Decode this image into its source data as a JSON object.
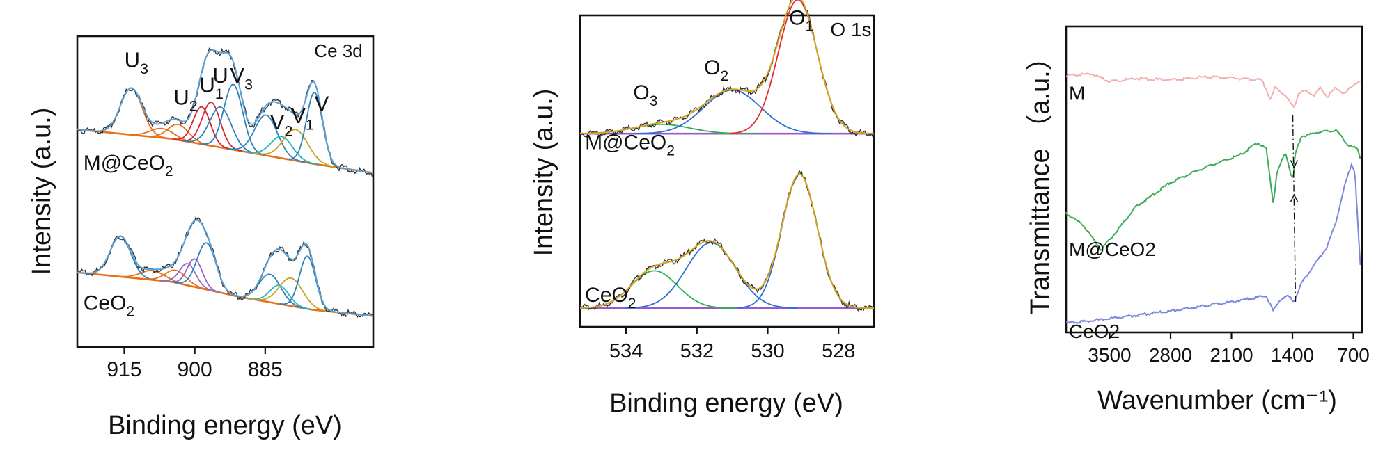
{
  "chart_data": [
    {
      "id": "ce3d",
      "type": "line",
      "title": "Ce 3d",
      "xlabel": "Binding energy (eV)",
      "ylabel": "Intensity (a.u.)",
      "xlim": [
        925,
        862
      ],
      "reversed_x": true,
      "xticks": [
        915,
        900,
        885
      ],
      "ylim": [
        0,
        100
      ],
      "peak_labels": [
        {
          "base": "U",
          "sub": "3",
          "x": 913.5,
          "y": 90
        },
        {
          "base": "U",
          "sub": "2",
          "x": 903,
          "y": 78
        },
        {
          "base": "U",
          "sub": "1",
          "x": 897.5,
          "y": 82
        },
        {
          "base": "U",
          "sub": "",
          "x": 894.7,
          "y": 85
        },
        {
          "base": "V",
          "sub": "3",
          "x": 891,
          "y": 85
        },
        {
          "base": "V",
          "sub": "2",
          "x": 882.5,
          "y": 70
        },
        {
          "base": "V",
          "sub": "1",
          "x": 878,
          "y": 72
        },
        {
          "base": "V",
          "sub": "",
          "x": 873,
          "y": 76
        }
      ],
      "sample_labels": [
        {
          "base": "M@CeO",
          "sub": "2",
          "x": 924,
          "y": 57
        },
        {
          "base": "CeO",
          "sub": "2",
          "x": 924,
          "y": 12
        }
      ],
      "samples": [
        {
          "name": "M@CeO2",
          "offset": 56,
          "baseline": [
            [
              925,
              14
            ],
            [
              905,
              11
            ],
            [
              890,
              7
            ],
            [
              875,
              3
            ],
            [
              862,
              0
            ]
          ],
          "components": [
            {
              "color": "#e8701a",
              "center": 913.5,
              "height": 15,
              "width": 2.3
            },
            {
              "color": "#e8701a",
              "center": 907,
              "height": 3,
              "width": 2.5
            },
            {
              "color": "#e8701a",
              "center": 903.5,
              "height": 5,
              "width": 2.2
            },
            {
              "color": "#d62728",
              "center": 898.5,
              "height": 12,
              "width": 1.8
            },
            {
              "color": "#d62728",
              "center": 896.5,
              "height": 14,
              "width": 1.9
            },
            {
              "color": "#2b83ba",
              "center": 894.5,
              "height": 13,
              "width": 2.3
            },
            {
              "color": "#2b83ba",
              "center": 891.8,
              "height": 21,
              "width": 2.0
            },
            {
              "color": "#2b83ba",
              "center": 884.8,
              "height": 13,
              "width": 2.4
            },
            {
              "color": "#1bb6c8",
              "center": 881.5,
              "height": 7,
              "width": 2.3
            },
            {
              "color": "#c9a227",
              "center": 878.5,
              "height": 10,
              "width": 2.6
            },
            {
              "color": "#2b83ba",
              "center": 874.5,
              "height": 23,
              "width": 1.7
            }
          ]
        },
        {
          "name": "CeO2",
          "offset": 10,
          "baseline": [
            [
              925,
              14
            ],
            [
              905,
              11
            ],
            [
              890,
              6
            ],
            [
              875,
              2
            ],
            [
              862,
              0
            ]
          ],
          "components": [
            {
              "color": "#2b83ba",
              "center": 915.8,
              "height": 13,
              "width": 2.2
            },
            {
              "color": "#e8701a",
              "center": 909,
              "height": 3,
              "width": 2.5
            },
            {
              "color": "#e8701a",
              "center": 904,
              "height": 4,
              "width": 2.2
            },
            {
              "color": "#9467bd",
              "center": 901.5,
              "height": 7,
              "width": 1.7
            },
            {
              "color": "#9467bd",
              "center": 900,
              "height": 9,
              "width": 1.6
            },
            {
              "color": "#2b83ba",
              "center": 897.5,
              "height": 15,
              "width": 2.0
            },
            {
              "color": "#2b83ba",
              "center": 884,
              "height": 9,
              "width": 2.3
            },
            {
              "color": "#1bb6c8",
              "center": 882,
              "height": 6,
              "width": 2.0
            },
            {
              "color": "#c9a227",
              "center": 879.5,
              "height": 9,
              "width": 2.5
            },
            {
              "color": "#2b83ba",
              "center": 876,
              "height": 17,
              "width": 1.7
            }
          ]
        }
      ]
    },
    {
      "id": "o1s",
      "type": "line",
      "title": "O 1s",
      "xlabel": "Binding energy (eV)",
      "ylabel": "Intensity (a.u.)",
      "xlim": [
        535.3,
        527
      ],
      "reversed_x": true,
      "xticks": [
        534,
        532,
        530,
        528
      ],
      "ylim": [
        0,
        100
      ],
      "peak_labels": [
        {
          "base": "O",
          "sub": "3",
          "x": 533.6,
          "y": 73
        },
        {
          "base": "O",
          "sub": "2",
          "x": 531.6,
          "y": 81
        },
        {
          "base": "O",
          "sub": "1",
          "x": 529.2,
          "y": 97
        }
      ],
      "sample_labels": [
        {
          "base": "M@CeO",
          "sub": "2",
          "x": 535.2,
          "y": 57
        },
        {
          "base": "CeO",
          "sub": "2",
          "x": 535.2,
          "y": 8
        }
      ],
      "samples": [
        {
          "name": "M@CeO2",
          "offset": 62,
          "baseline": [
            [
              535.3,
              0
            ],
            [
              527,
              0
            ]
          ],
          "components": [
            {
              "color": "#2bb24c",
              "center": 533.0,
              "height": 3,
              "width": 0.8
            },
            {
              "color": "#2b6fd6",
              "center": 531.0,
              "height": 14,
              "width": 0.8
            },
            {
              "color": "#e8262a",
              "center": 529.15,
              "height": 43,
              "width": 0.55
            }
          ]
        },
        {
          "name": "CeO2",
          "offset": 6,
          "baseline": [
            [
              535.3,
              0
            ],
            [
              527,
              0
            ]
          ],
          "components": [
            {
              "color": "#2bb24c",
              "center": 533.2,
              "height": 12,
              "width": 0.65
            },
            {
              "color": "#2b6fd6",
              "center": 531.6,
              "height": 21,
              "width": 0.7
            },
            {
              "color": "#2b6fd6",
              "center": 529.1,
              "height": 43,
              "width": 0.5
            }
          ]
        }
      ]
    },
    {
      "id": "ftir",
      "type": "line",
      "title": "",
      "xlabel": "Wavenumber (cm⁻¹)",
      "ylabel": "Transmittance （a.u.）",
      "xlim": [
        4000,
        600
      ],
      "reversed_x": true,
      "xticks": [
        3500,
        2800,
        2100,
        1400,
        700
      ],
      "ylim": [
        0,
        100
      ],
      "marker_wavenumber": 1380,
      "series": [
        {
          "name": "M",
          "color": "#f2aeb0",
          "points": [
            [
              4000,
              84
            ],
            [
              3700,
              84.5
            ],
            [
              3500,
              82
            ],
            [
              3200,
              83
            ],
            [
              2800,
              82.5
            ],
            [
              2400,
              83.5
            ],
            [
              2000,
              83
            ],
            [
              1750,
              82.5
            ],
            [
              1650,
              76
            ],
            [
              1600,
              80
            ],
            [
              1500,
              78
            ],
            [
              1450,
              76
            ],
            [
              1380,
              73.5
            ],
            [
              1330,
              78
            ],
            [
              1250,
              79
            ],
            [
              1150,
              77.5
            ],
            [
              1080,
              80
            ],
            [
              1000,
              77
            ],
            [
              900,
              80
            ],
            [
              800,
              78
            ],
            [
              700,
              81
            ],
            [
              620,
              82
            ]
          ]
        },
        {
          "name": "M@CeO2",
          "color": "#3cac56",
          "points": [
            [
              4000,
              39
            ],
            [
              3800,
              35
            ],
            [
              3600,
              27
            ],
            [
              3450,
              32
            ],
            [
              3200,
              41
            ],
            [
              2800,
              49
            ],
            [
              2400,
              54
            ],
            [
              2000,
              58
            ],
            [
              1800,
              62
            ],
            [
              1700,
              60
            ],
            [
              1620,
              42
            ],
            [
              1580,
              52
            ],
            [
              1480,
              59
            ],
            [
              1420,
              52
            ],
            [
              1390,
              50
            ],
            [
              1370,
              58
            ],
            [
              1300,
              64
            ],
            [
              1100,
              65.5
            ],
            [
              900,
              66
            ],
            [
              750,
              61
            ],
            [
              650,
              60
            ],
            [
              620,
              57
            ]
          ]
        },
        {
          "name": "CeO2",
          "color": "#7b86dc",
          "points": [
            [
              4000,
              3
            ],
            [
              3500,
              4.5
            ],
            [
              2800,
              7
            ],
            [
              2100,
              10
            ],
            [
              1700,
              12
            ],
            [
              1620,
              7
            ],
            [
              1550,
              10.5
            ],
            [
              1450,
              12
            ],
            [
              1380,
              10
            ],
            [
              1300,
              16
            ],
            [
              1150,
              22
            ],
            [
              1000,
              28
            ],
            [
              900,
              36
            ],
            [
              800,
              48
            ],
            [
              720,
              55
            ],
            [
              680,
              52
            ],
            [
              650,
              36
            ],
            [
              620,
              22
            ]
          ]
        }
      ]
    }
  ]
}
